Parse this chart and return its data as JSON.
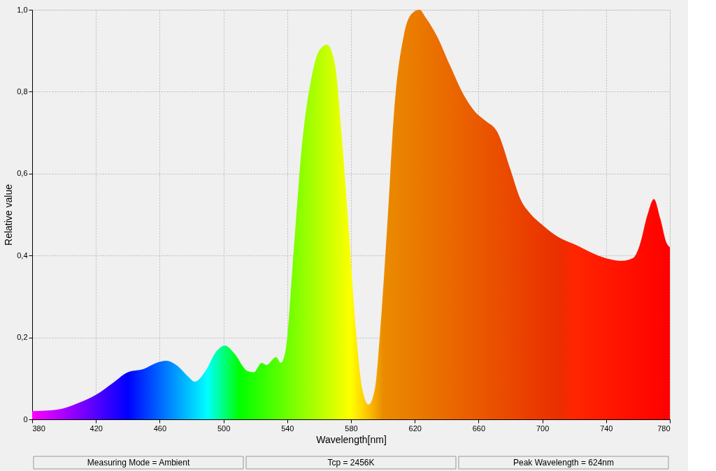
{
  "chart_data": {
    "type": "area",
    "xlabel": "Wavelength[nm]",
    "ylabel": "Relative value",
    "x": [
      380,
      396,
      409,
      420,
      431,
      440,
      450,
      458,
      464,
      471,
      478,
      482,
      489,
      495,
      501,
      507,
      515,
      519,
      524,
      527,
      533,
      536,
      539,
      544,
      549,
      555,
      560,
      565,
      570,
      574,
      579,
      583,
      587,
      591,
      595,
      598,
      603,
      607,
      613,
      618,
      623,
      627,
      634,
      642,
      651,
      658,
      664,
      672,
      680,
      686,
      693,
      700,
      708,
      722,
      735,
      750,
      757,
      761,
      766,
      770,
      774,
      778,
      780
    ],
    "series": [
      {
        "values": [
          0.02,
          0.024,
          0.04,
          0.06,
          0.09,
          0.115,
          0.123,
          0.138,
          0.143,
          0.131,
          0.104,
          0.092,
          0.12,
          0.163,
          0.18,
          0.16,
          0.118,
          0.115,
          0.138,
          0.133,
          0.152,
          0.138,
          0.169,
          0.41,
          0.66,
          0.83,
          0.9,
          0.915,
          0.865,
          0.7,
          0.44,
          0.22,
          0.075,
          0.036,
          0.075,
          0.2,
          0.49,
          0.75,
          0.935,
          0.99,
          1.0,
          0.98,
          0.935,
          0.865,
          0.79,
          0.75,
          0.73,
          0.7,
          0.61,
          0.54,
          0.5,
          0.475,
          0.45,
          0.424,
          0.4,
          0.387,
          0.394,
          0.424,
          0.5,
          0.538,
          0.49,
          0.43,
          0.42
        ]
      }
    ],
    "xlim": [
      380,
      780
    ],
    "xticks": [
      380,
      420,
      460,
      500,
      540,
      580,
      620,
      660,
      700,
      740,
      780
    ],
    "ylim": [
      0,
      1.0
    ],
    "yticks": [
      0,
      {
        "value": 0.2,
        "label": "0,2"
      },
      {
        "value": 0.4,
        "label": "0,4"
      },
      {
        "value": 0.6,
        "label": "0,6"
      },
      {
        "value": 0.8,
        "label": "0,8"
      },
      {
        "value": 1.0,
        "label": "1,0"
      }
    ],
    "grid": true,
    "annotations": [
      "Measuring Mode = Ambient",
      "Tcp = 2456K",
      "Peak Wavelength = 624nm"
    ]
  }
}
